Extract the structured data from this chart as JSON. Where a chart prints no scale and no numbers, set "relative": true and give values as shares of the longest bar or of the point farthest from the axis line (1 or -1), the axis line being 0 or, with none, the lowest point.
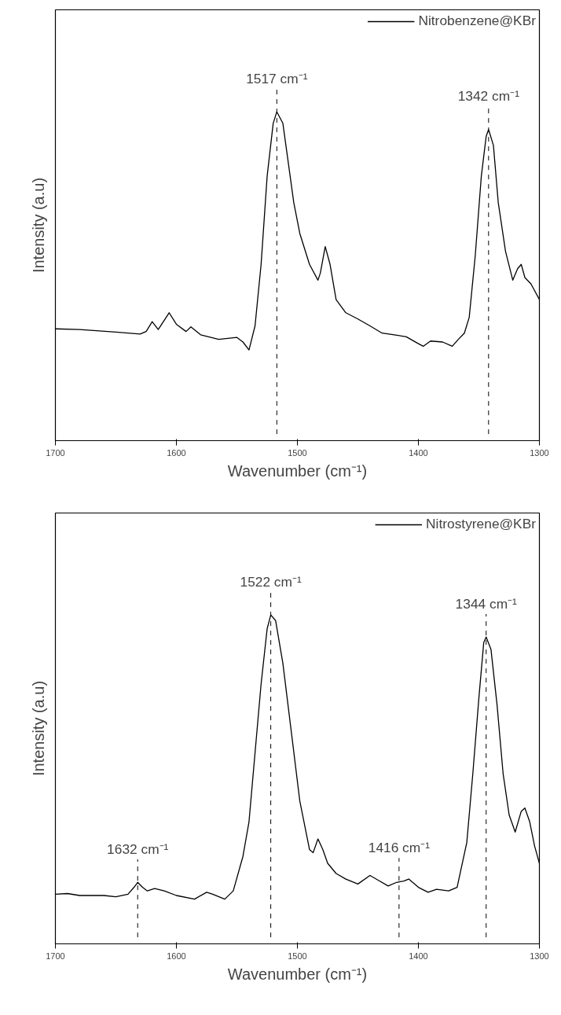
{
  "chart_data": [
    {
      "type": "line",
      "relative": true,
      "xlabel": "Wavenumber (cm⁻¹)",
      "ylabel": "Intensity (a.u)",
      "xlim": [
        1700,
        1300
      ],
      "xticks": [
        1700,
        1600,
        1500,
        1400,
        1300
      ],
      "tick_labels": "x",
      "grid": false,
      "legend": "top right",
      "series": [
        {
          "name": "Nitrobenzene@KBr",
          "color": "#000000",
          "x": [
            1700,
            1680,
            1650,
            1630,
            1625,
            1620,
            1615,
            1606,
            1600,
            1592,
            1588,
            1580,
            1565,
            1550,
            1545,
            1540,
            1535,
            1530,
            1525,
            1520,
            1517,
            1512,
            1508,
            1503,
            1498,
            1490,
            1483,
            1481,
            1477,
            1473,
            1468,
            1460,
            1450,
            1440,
            1430,
            1420,
            1410,
            1400,
            1396,
            1390,
            1380,
            1372,
            1367,
            1362,
            1358,
            1353,
            1348,
            1344,
            1342,
            1338,
            1334,
            1328,
            1322,
            1318,
            1315,
            1312,
            1307,
            1300
          ],
          "values": [
            0.34,
            0.338,
            0.33,
            0.324,
            0.332,
            0.362,
            0.338,
            0.389,
            0.354,
            0.332,
            0.346,
            0.322,
            0.308,
            0.314,
            0.3,
            0.276,
            0.349,
            0.536,
            0.804,
            0.965,
            1.0,
            0.965,
            0.858,
            0.724,
            0.63,
            0.536,
            0.488,
            0.51,
            0.59,
            0.536,
            0.429,
            0.389,
            0.37,
            0.349,
            0.327,
            0.322,
            0.316,
            0.295,
            0.287,
            0.303,
            0.3,
            0.287,
            0.308,
            0.327,
            0.375,
            0.563,
            0.804,
            0.925,
            0.946,
            0.898,
            0.724,
            0.576,
            0.488,
            0.523,
            0.536,
            0.496,
            0.477,
            0.429
          ]
        }
      ],
      "ref_lines": [
        {
          "axis": "x",
          "value": 1517,
          "label": "1517 cm⁻¹",
          "color": "#000000",
          "line_style": "dashed"
        },
        {
          "axis": "x",
          "value": 1342,
          "label": "1342 cm⁻¹",
          "color": "#000000",
          "line_style": "dashed"
        }
      ]
    },
    {
      "type": "line",
      "relative": true,
      "xlabel": "Wavenumber (cm⁻¹)",
      "ylabel": "Intensity (a.u)",
      "xlim": [
        1700,
        1300
      ],
      "xticks": [
        1700,
        1600,
        1500,
        1400,
        1300
      ],
      "tick_labels": "x",
      "grid": false,
      "legend": "top right",
      "series": [
        {
          "name": "Nitrostyrene@KBr",
          "color": "#000000",
          "x": [
            1700,
            1690,
            1680,
            1660,
            1650,
            1640,
            1635,
            1632,
            1628,
            1624,
            1618,
            1610,
            1600,
            1585,
            1575,
            1570,
            1560,
            1553,
            1545,
            1540,
            1535,
            1530,
            1525,
            1522,
            1518,
            1512,
            1505,
            1498,
            1490,
            1487,
            1483,
            1479,
            1475,
            1468,
            1460,
            1450,
            1440,
            1433,
            1425,
            1418,
            1412,
            1408,
            1400,
            1392,
            1385,
            1375,
            1368,
            1360,
            1355,
            1350,
            1346,
            1344,
            1340,
            1335,
            1330,
            1325,
            1320,
            1315,
            1312,
            1308,
            1304,
            1300
          ],
          "values": [
            0.151,
            0.153,
            0.147,
            0.147,
            0.143,
            0.151,
            0.172,
            0.187,
            0.172,
            0.161,
            0.168,
            0.161,
            0.147,
            0.136,
            0.157,
            0.151,
            0.136,
            0.161,
            0.266,
            0.371,
            0.581,
            0.79,
            0.958,
            1.0,
            0.983,
            0.853,
            0.644,
            0.434,
            0.287,
            0.277,
            0.319,
            0.287,
            0.245,
            0.214,
            0.197,
            0.182,
            0.208,
            0.193,
            0.176,
            0.187,
            0.191,
            0.197,
            0.172,
            0.157,
            0.166,
            0.161,
            0.172,
            0.308,
            0.518,
            0.748,
            0.916,
            0.933,
            0.895,
            0.727,
            0.518,
            0.392,
            0.34,
            0.403,
            0.413,
            0.371,
            0.298,
            0.245
          ]
        }
      ],
      "ref_lines": [
        {
          "axis": "x",
          "value": 1632,
          "label": "1632 cm⁻¹",
          "color": "#000000",
          "line_style": "dashed"
        },
        {
          "axis": "x",
          "value": 1522,
          "label": "1522 cm⁻¹",
          "color": "#000000",
          "line_style": "dashed"
        },
        {
          "axis": "x",
          "value": 1416,
          "label": "1416 cm⁻¹",
          "color": "#000000",
          "line_style": "dashed"
        },
        {
          "axis": "x",
          "value": 1344,
          "label": "1344 cm⁻¹",
          "color": "#000000",
          "line_style": "dashed"
        }
      ]
    }
  ]
}
